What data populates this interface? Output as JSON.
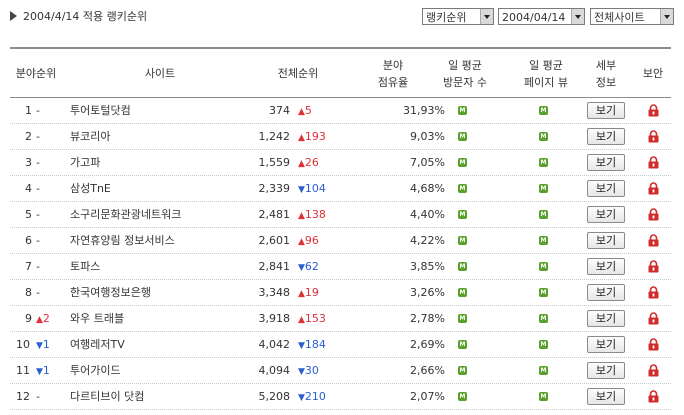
{
  "header": {
    "title": "2004/4/14 적용 랭키순위",
    "select_rank": "랭키순위",
    "select_date": "2004/04/14",
    "select_site": "전체사이트"
  },
  "columns": {
    "field_rank": "분야순위",
    "site": "사이트",
    "total_rank": "전체순위",
    "share_line1": "분야",
    "share_line2": "점유율",
    "visitors_line1": "일 평균",
    "visitors_line2": "방문자 수",
    "pageviews_line1": "일 평균",
    "pageviews_line2": "페이지 뷰",
    "detail_line1": "세부",
    "detail_line2": "정보",
    "security": "보안"
  },
  "labels": {
    "view_button": "보기",
    "m_icon": "M"
  },
  "rows": [
    {
      "rank": "1",
      "chg": "-",
      "chg_dir": "none",
      "site": "투어토털닷컴",
      "total": "374",
      "tchg": "5",
      "tchg_dir": "up",
      "share": "31,93%"
    },
    {
      "rank": "2",
      "chg": "-",
      "chg_dir": "none",
      "site": "뷰코리아",
      "total": "1,242",
      "tchg": "193",
      "tchg_dir": "up",
      "share": "9,03%"
    },
    {
      "rank": "3",
      "chg": "-",
      "chg_dir": "none",
      "site": "가고파",
      "total": "1,559",
      "tchg": "26",
      "tchg_dir": "up",
      "share": "7,05%"
    },
    {
      "rank": "4",
      "chg": "-",
      "chg_dir": "none",
      "site": "삼성TnE",
      "total": "2,339",
      "tchg": "104",
      "tchg_dir": "down",
      "share": "4,68%"
    },
    {
      "rank": "5",
      "chg": "-",
      "chg_dir": "none",
      "site": "소구리문화관광네트워크",
      "total": "2,481",
      "tchg": "138",
      "tchg_dir": "up",
      "share": "4,40%"
    },
    {
      "rank": "6",
      "chg": "-",
      "chg_dir": "none",
      "site": "자연휴양림 정보서비스",
      "total": "2,601",
      "tchg": "96",
      "tchg_dir": "up",
      "share": "4,22%"
    },
    {
      "rank": "7",
      "chg": "-",
      "chg_dir": "none",
      "site": "토파스",
      "total": "2,841",
      "tchg": "62",
      "tchg_dir": "down",
      "share": "3,85%"
    },
    {
      "rank": "8",
      "chg": "-",
      "chg_dir": "none",
      "site": "한국여행정보은행",
      "total": "3,348",
      "tchg": "19",
      "tchg_dir": "up",
      "share": "3,26%"
    },
    {
      "rank": "9",
      "chg": "2",
      "chg_dir": "up",
      "site": "와우 트래블",
      "total": "3,918",
      "tchg": "153",
      "tchg_dir": "up",
      "share": "2,78%"
    },
    {
      "rank": "10",
      "chg": "1",
      "chg_dir": "down",
      "site": "여행레저TV",
      "total": "4,042",
      "tchg": "184",
      "tchg_dir": "down",
      "share": "2,69%"
    },
    {
      "rank": "11",
      "chg": "1",
      "chg_dir": "down",
      "site": "투어가이드",
      "total": "4,094",
      "tchg": "30",
      "tchg_dir": "down",
      "share": "2,66%"
    },
    {
      "rank": "12",
      "chg": "-",
      "chg_dir": "none",
      "site": "다르티브이 닷컴",
      "total": "5,208",
      "tchg": "210",
      "tchg_dir": "down",
      "share": "2,07%"
    }
  ],
  "colors": {
    "up": "#e0303a",
    "down": "#2a5fd0",
    "m_icon": "#5aa02c",
    "lock": "#d22b2b"
  }
}
